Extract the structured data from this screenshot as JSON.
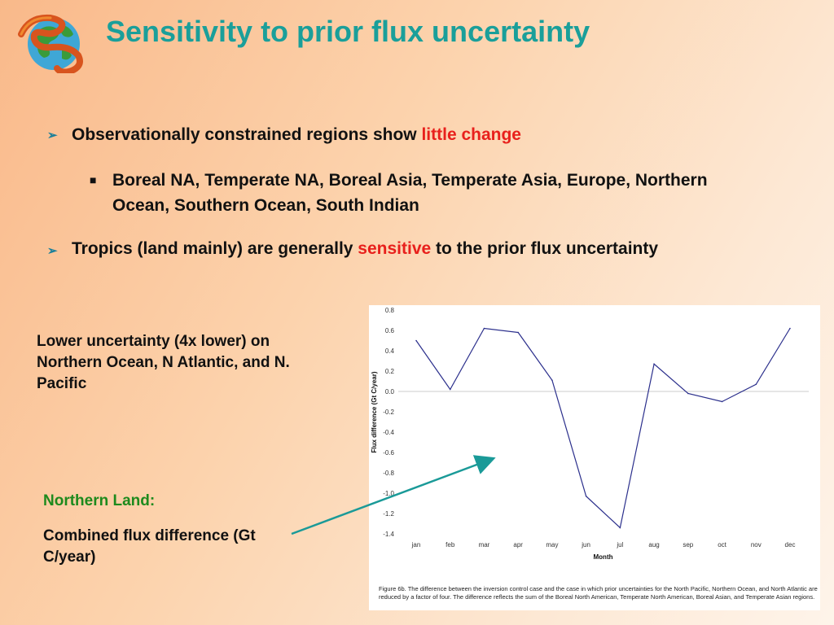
{
  "slide": {
    "title": "Sensitivity to prior flux uncertainty",
    "logo_icon": "globe-snake-logo-icon",
    "bullets": [
      {
        "prefix": "Observationally constrained regions show ",
        "highlight": "little change",
        "suffix": "",
        "sub": "Boreal NA, Temperate NA, Boreal Asia, Temperate Asia, Europe, Northern Ocean, Southern Ocean, South Indian"
      },
      {
        "prefix": "Tropics (land mainly) are generally ",
        "highlight": "sensitive",
        "suffix": " to the prior flux uncertainty"
      }
    ],
    "left_note": "Lower uncertainty (4x lower) on Northern Ocean, N Atlantic, and N. Pacific",
    "northern_land_title": "Northern Land:",
    "northern_land_body": "Combined flux difference (Gt C/year)",
    "highlight_color": "#e8201c",
    "title_color": "#1a9f9a"
  },
  "chart_data": {
    "type": "line",
    "categories": [
      "jan",
      "feb",
      "mar",
      "apr",
      "may",
      "jun",
      "jul",
      "aug",
      "sep",
      "oct",
      "nov",
      "dec"
    ],
    "series": [
      {
        "values": [
          0.5,
          0.02,
          0.62,
          0.58,
          0.11,
          -1.03,
          -1.34,
          0.27,
          -0.02,
          -0.1,
          0.07,
          0.62
        ]
      }
    ],
    "xlabel": "Month",
    "ylabel": "Flux difference (Gt C/year)",
    "ylim": [
      -1.4,
      0.8
    ],
    "yticks": [
      "0.8",
      "0.6",
      "0.4",
      "0.2",
      "0.0",
      "-0.2",
      "-0.4",
      "-0.6",
      "-0.8",
      "-1.0",
      "-1.2",
      "-1.4"
    ],
    "caption": "Figure 6b. The difference between the inversion control case and the case in which prior uncertainties for the North Pacific, Northern Ocean, and North Atlantic are reduced by a factor of four. The difference reflects the sum of the Boreal North American, Temperate North American, Boreal Asian, and Temperate Asian regions.",
    "line_color": "#2b2f8c",
    "zero_line_color": "#cccccc"
  }
}
